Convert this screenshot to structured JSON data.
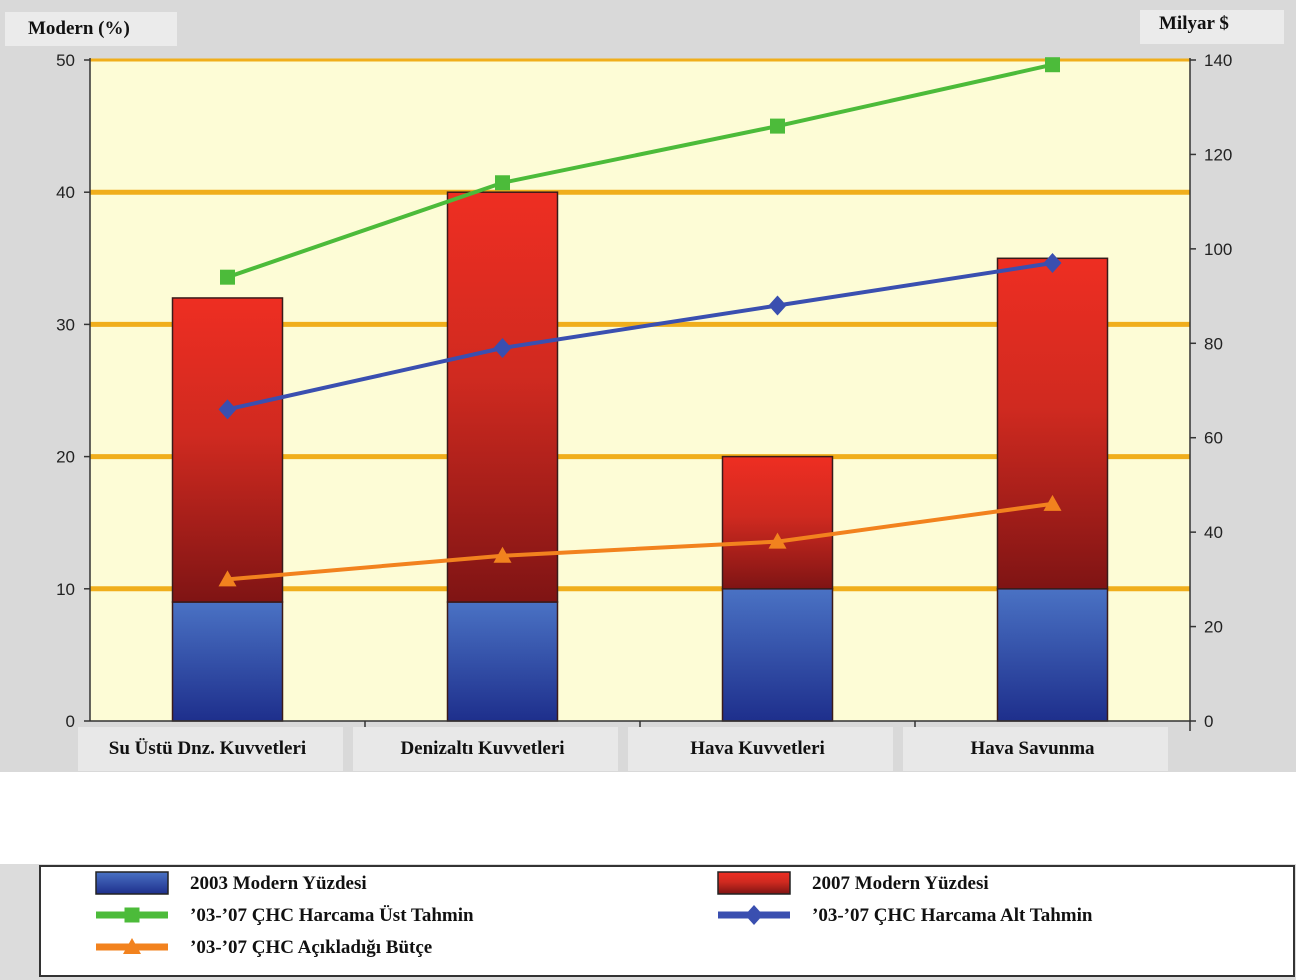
{
  "chart_data": {
    "type": "bar",
    "stacked": true,
    "left_axis_label": "Modern (%)",
    "right_axis_label": "Milyar $",
    "categories": [
      "Su Üstü Dnz. Kuvvetleri",
      "Denizaltı Kuvvetleri",
      "Hava Kuvvetleri",
      "Hava Savunma"
    ],
    "ylim_left": [
      0,
      50
    ],
    "yticks_left": [
      0,
      10,
      20,
      30,
      40,
      50
    ],
    "ylim_right": [
      0,
      140
    ],
    "yticks_right": [
      0,
      20,
      40,
      60,
      80,
      100,
      120,
      140
    ],
    "gridlines_left": [
      10,
      20,
      30,
      40,
      50
    ],
    "bar_series": [
      {
        "name": "2003 Modern Yüzdesi",
        "values": [
          9,
          9,
          10,
          10
        ],
        "color": "#3f5fb4"
      },
      {
        "name": "2007 Modern Yüzdesi",
        "values": [
          23,
          31,
          10,
          25
        ],
        "color": "#e5281f"
      }
    ],
    "line_series": [
      {
        "name": "’03-’07 ÇHC Harcama Üst Tahmin",
        "axis": "right",
        "values": [
          94,
          114,
          126,
          139
        ],
        "color": "#4cbb3a",
        "marker": "square"
      },
      {
        "name": "’03-’07 ÇHC Harcama Alt Tahmin",
        "axis": "right",
        "values": [
          66,
          79,
          88,
          97
        ],
        "color": "#3a4fb0",
        "marker": "diamond"
      },
      {
        "name": "’03-’07 ÇHC Açıkladığı Bütçe",
        "axis": "right",
        "values": [
          30,
          35,
          38,
          46
        ],
        "color": "#f2821e",
        "marker": "triangle"
      }
    ],
    "legend_placement": "bottom",
    "colors": {
      "plot_bg": "#fdfcd6",
      "grid": "#f0ae1c",
      "frame_bg": "#d9d9d9"
    }
  }
}
